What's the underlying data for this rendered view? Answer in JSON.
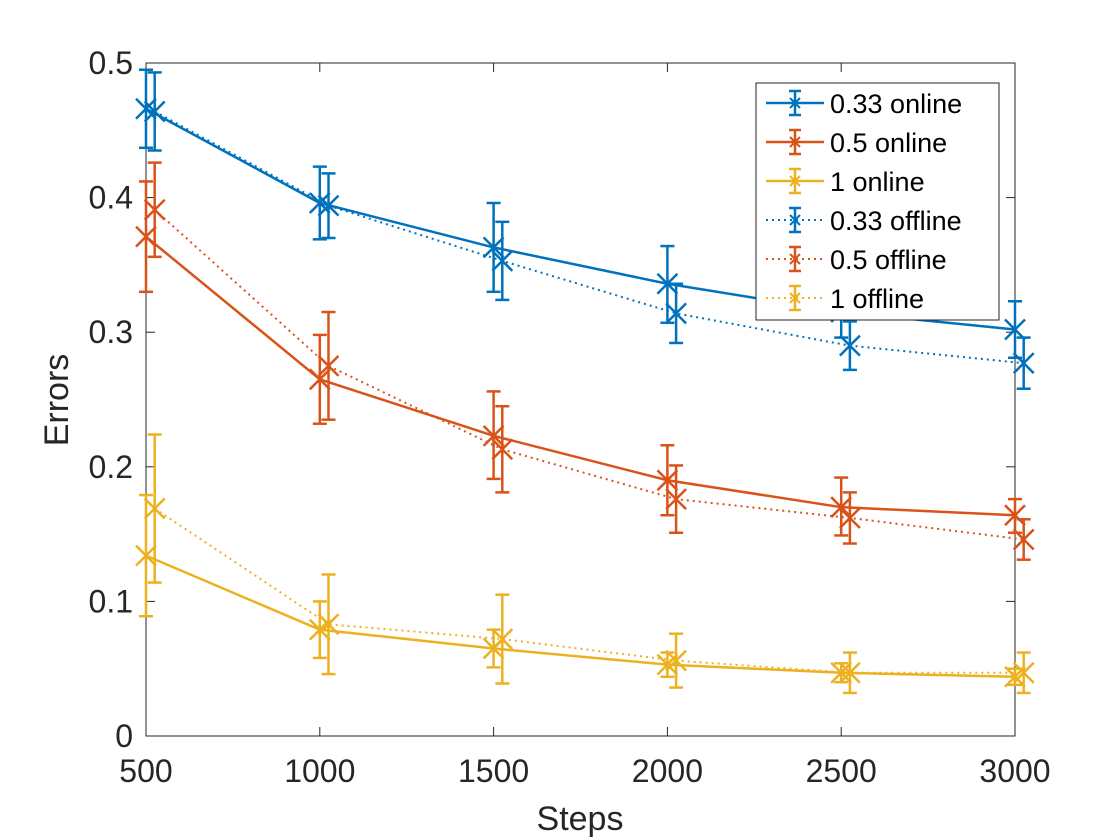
{
  "chart_data": {
    "type": "line",
    "xlabel": "Steps",
    "ylabel": "Errors",
    "xlim": [
      500,
      3000
    ],
    "ylim": [
      0,
      0.5
    ],
    "xticks": [
      500,
      1000,
      1500,
      2000,
      2500,
      3000
    ],
    "xtick_labels": [
      "500",
      "1000",
      "1500",
      "2000",
      "2500",
      "3000"
    ],
    "yticks": [
      0,
      0.1,
      0.2,
      0.3,
      0.4,
      0.5
    ],
    "ytick_labels": [
      "0",
      "0.1",
      "0.2",
      "0.3",
      "0.4",
      "0.5"
    ],
    "legend_position": "top-right",
    "colors": {
      "blue": "#0072BD",
      "orange": "#D95319",
      "yellow": "#EDB120"
    },
    "series": [
      {
        "name": "0.33 online",
        "color": "#0072BD",
        "style": "solid",
        "x": [
          500,
          1000,
          1500,
          2000,
          2500,
          3000
        ],
        "y": [
          0.466,
          0.396,
          0.363,
          0.336,
          0.315,
          0.302
        ],
        "err_low": [
          0.437,
          0.369,
          0.33,
          0.307,
          0.296,
          0.281
        ],
        "err_high": [
          0.495,
          0.423,
          0.396,
          0.364,
          0.336,
          0.323
        ]
      },
      {
        "name": "0.5 online",
        "color": "#D95319",
        "style": "solid",
        "x": [
          500,
          1000,
          1500,
          2000,
          2500,
          3000
        ],
        "y": [
          0.371,
          0.265,
          0.223,
          0.19,
          0.17,
          0.164
        ],
        "err_low": [
          0.33,
          0.232,
          0.191,
          0.164,
          0.149,
          0.151
        ],
        "err_high": [
          0.412,
          0.298,
          0.256,
          0.216,
          0.192,
          0.176
        ]
      },
      {
        "name": "1 online",
        "color": "#EDB120",
        "style": "solid",
        "x": [
          500,
          1000,
          1500,
          2000,
          2500,
          3000
        ],
        "y": [
          0.134,
          0.079,
          0.065,
          0.053,
          0.047,
          0.044
        ],
        "err_low": [
          0.089,
          0.058,
          0.051,
          0.044,
          0.04,
          0.038
        ],
        "err_high": [
          0.179,
          0.1,
          0.079,
          0.062,
          0.054,
          0.05
        ]
      },
      {
        "name": "0.33 offline",
        "color": "#0072BD",
        "style": "dotted",
        "x": [
          525,
          1025,
          1525,
          2025,
          2525,
          3025
        ],
        "y": [
          0.464,
          0.394,
          0.353,
          0.314,
          0.29,
          0.277
        ],
        "err_low": [
          0.435,
          0.37,
          0.324,
          0.292,
          0.272,
          0.258
        ],
        "err_high": [
          0.493,
          0.418,
          0.382,
          0.336,
          0.308,
          0.296
        ]
      },
      {
        "name": "0.5 offline",
        "color": "#D95319",
        "style": "dotted",
        "x": [
          525,
          1025,
          1525,
          2025,
          2525,
          3025
        ],
        "y": [
          0.391,
          0.275,
          0.213,
          0.176,
          0.162,
          0.146
        ],
        "err_low": [
          0.356,
          0.235,
          0.181,
          0.151,
          0.143,
          0.131
        ],
        "err_high": [
          0.426,
          0.315,
          0.245,
          0.201,
          0.181,
          0.161
        ]
      },
      {
        "name": "1 offline",
        "color": "#EDB120",
        "style": "dotted",
        "x": [
          525,
          1025,
          1525,
          2025,
          2525,
          3025
        ],
        "y": [
          0.169,
          0.083,
          0.072,
          0.056,
          0.047,
          0.047
        ],
        "err_low": [
          0.114,
          0.046,
          0.039,
          0.036,
          0.032,
          0.032
        ],
        "err_high": [
          0.224,
          0.12,
          0.105,
          0.076,
          0.062,
          0.062
        ]
      }
    ]
  }
}
